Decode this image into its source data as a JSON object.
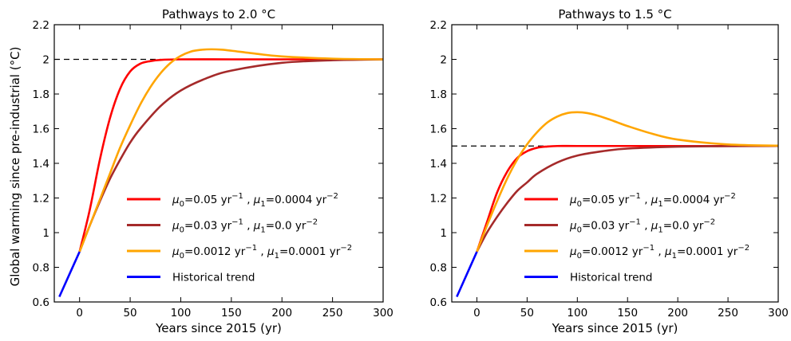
{
  "figure": {
    "ylabel": "Global warming since pre-industrial (°C)"
  },
  "chart_data": [
    {
      "type": "line",
      "title": "Pathways to 2.0 °C",
      "xlabel": "Years since 2015 (yr)",
      "ylabel": "Global warming since pre-industrial (°C)",
      "xlim": [
        -25,
        300
      ],
      "ylim": [
        0.6,
        2.2
      ],
      "xticks": [
        0,
        50,
        100,
        150,
        200,
        250,
        300
      ],
      "yticks": [
        0.6,
        0.8,
        1.0,
        1.2,
        1.4,
        1.6,
        1.8,
        2.0,
        2.2
      ],
      "target": 2.0,
      "legend": "lower-right",
      "series": [
        {
          "name": "μ0=0.05 yr⁻¹ , μ1=0.0004 yr⁻²",
          "color": "#ff0000",
          "x": [
            0,
            10,
            20,
            30,
            40,
            50,
            60,
            70,
            80,
            100,
            150,
            200,
            250,
            300
          ],
          "y": [
            0.89,
            1.13,
            1.42,
            1.66,
            1.83,
            1.93,
            1.975,
            1.99,
            1.997,
            2.0,
            2.0,
            2.0,
            2.0,
            2.0
          ]
        },
        {
          "name": "μ0=0.03 yr⁻¹ , μ1=0.0 yr⁻²",
          "color": "#a52a2a",
          "x": [
            0,
            10,
            20,
            30,
            40,
            50,
            60,
            80,
            100,
            125,
            150,
            200,
            250,
            300
          ],
          "y": [
            0.89,
            1.04,
            1.18,
            1.31,
            1.42,
            1.52,
            1.6,
            1.73,
            1.82,
            1.89,
            1.935,
            1.98,
            1.995,
            2.0
          ]
        },
        {
          "name": "μ0=0.0012 yr⁻¹ , μ1=0.0001 yr⁻²",
          "color": "#ffa500",
          "x": [
            0,
            10,
            20,
            30,
            40,
            50,
            60,
            70,
            80,
            90,
            100,
            110,
            120,
            130,
            140,
            150,
            175,
            200,
            250,
            300
          ],
          "y": [
            0.89,
            1.04,
            1.19,
            1.34,
            1.49,
            1.62,
            1.74,
            1.84,
            1.92,
            1.98,
            2.02,
            2.045,
            2.055,
            2.058,
            2.056,
            2.05,
            2.032,
            2.017,
            2.004,
            2.0
          ]
        },
        {
          "name": "Historical trend",
          "color": "#0000ff",
          "x": [
            -20,
            0
          ],
          "y": [
            0.63,
            0.89
          ]
        }
      ]
    },
    {
      "type": "line",
      "title": "Pathways to 1.5 °C",
      "xlabel": "Years since 2015 (yr)",
      "ylabel": "",
      "xlim": [
        -25,
        300
      ],
      "ylim": [
        0.6,
        2.2
      ],
      "xticks": [
        0,
        50,
        100,
        150,
        200,
        250,
        300
      ],
      "yticks": [
        0.6,
        0.8,
        1.0,
        1.2,
        1.4,
        1.6,
        1.8,
        2.0,
        2.2
      ],
      "target": 1.5,
      "legend": "lower-right",
      "series": [
        {
          "name": "μ0=0.05 yr⁻¹ , μ1=0.0004 yr⁻²",
          "color": "#ff0000",
          "x": [
            0,
            10,
            20,
            30,
            40,
            50,
            60,
            70,
            80,
            100,
            150,
            200,
            250,
            300
          ],
          "y": [
            0.89,
            1.06,
            1.23,
            1.35,
            1.43,
            1.47,
            1.49,
            1.497,
            1.5,
            1.5,
            1.5,
            1.5,
            1.5,
            1.5
          ]
        },
        {
          "name": "μ0=0.03 yr⁻¹ , μ1=0.0 yr⁻²",
          "color": "#a52a2a",
          "x": [
            0,
            10,
            20,
            30,
            40,
            50,
            60,
            80,
            100,
            125,
            150,
            200,
            250,
            300
          ],
          "y": [
            0.89,
            1.0,
            1.09,
            1.17,
            1.24,
            1.29,
            1.34,
            1.405,
            1.445,
            1.47,
            1.485,
            1.496,
            1.499,
            1.5
          ]
        },
        {
          "name": "μ0=0.0012 yr⁻¹ , μ1=0.0001 yr⁻²",
          "color": "#ffa500",
          "x": [
            0,
            10,
            20,
            30,
            40,
            50,
            60,
            70,
            80,
            90,
            100,
            110,
            120,
            130,
            140,
            150,
            175,
            200,
            250,
            300
          ],
          "y": [
            0.89,
            1.04,
            1.18,
            1.31,
            1.42,
            1.51,
            1.58,
            1.635,
            1.67,
            1.69,
            1.695,
            1.69,
            1.676,
            1.657,
            1.636,
            1.615,
            1.57,
            1.537,
            1.509,
            1.502
          ]
        },
        {
          "name": "Historical trend",
          "color": "#0000ff",
          "x": [
            -20,
            0
          ],
          "y": [
            0.63,
            0.89
          ]
        }
      ]
    }
  ]
}
